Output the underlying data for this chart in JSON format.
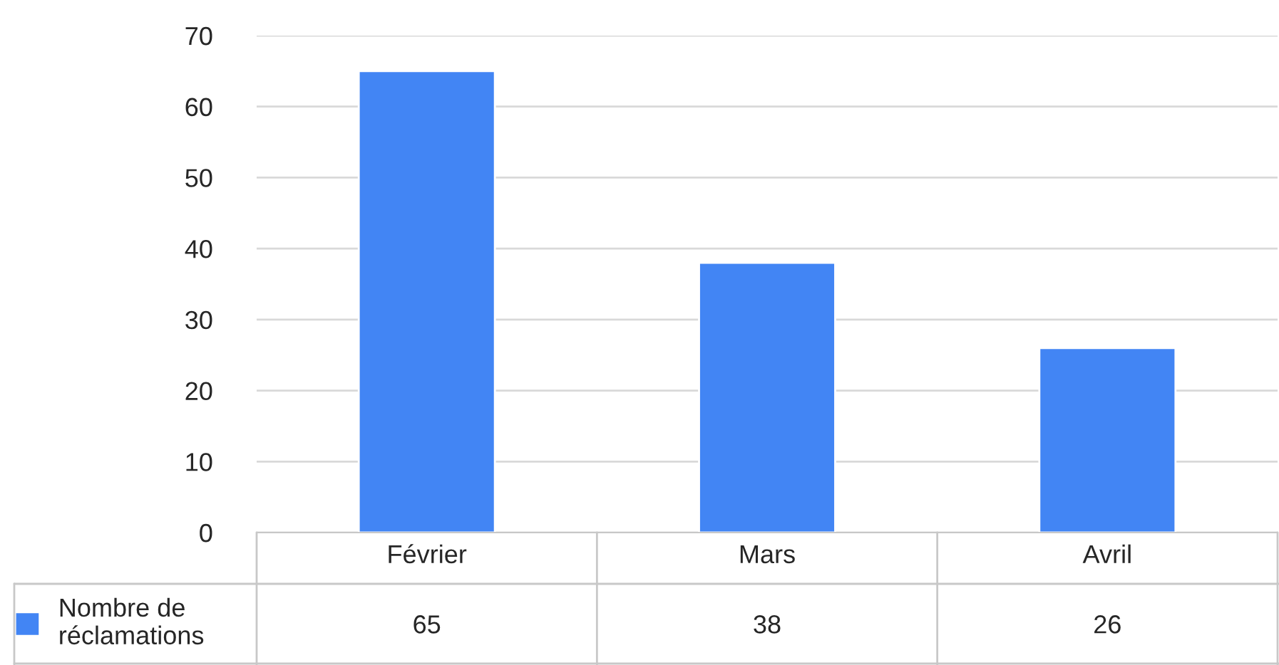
{
  "chart_data": {
    "type": "bar",
    "categories": [
      "Février",
      "Mars",
      "Avril"
    ],
    "series": [
      {
        "name": "Nombre de réclamations",
        "color": "#4285f4",
        "values": [
          65,
          38,
          26
        ]
      }
    ],
    "ylim": [
      0,
      70
    ],
    "yticks": [
      0,
      10,
      20,
      30,
      40,
      50,
      60,
      70
    ],
    "grid": "y",
    "legend": "bottom left",
    "data_labels": true
  }
}
